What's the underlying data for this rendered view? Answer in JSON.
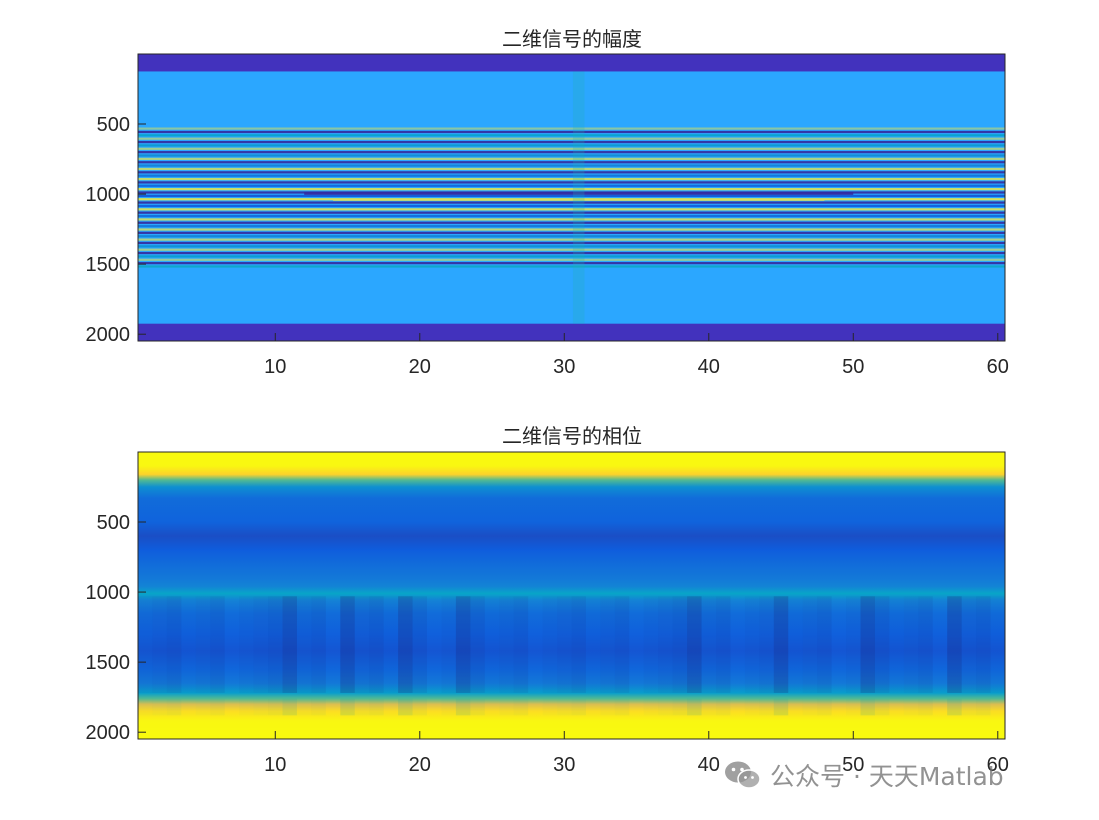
{
  "colors": {
    "parula": [
      "#352a87",
      "#0f5cdd",
      "#1481d6",
      "#06a4ca",
      "#2eb7a4",
      "#87bf77",
      "#d1bb59",
      "#fec832",
      "#f9fb0e"
    ],
    "amp_background": "#2ba7ff",
    "amp_edge": "#4232bd",
    "amp_stripe_dark": "#332b9e",
    "amp_stripe_yellow": "#d9e25a"
  },
  "chart_data": [
    {
      "type": "heatmap",
      "title": "二维信号的幅度",
      "xlim": [
        0.5,
        60.5
      ],
      "ylim": [
        2048.5,
        0.5
      ],
      "y_reversed": true,
      "x_ticks": [
        10,
        20,
        30,
        40,
        50,
        60
      ],
      "x_tick_labels": [
        "10",
        "20",
        "30",
        "40",
        "50",
        "60"
      ],
      "y_ticks": [
        500,
        1000,
        1500,
        2000
      ],
      "y_tick_labels": [
        "500",
        "1000",
        "1500",
        "2000"
      ],
      "colormap": "parula",
      "bands": [
        {
          "y_start": 0,
          "y_end": 125,
          "level": "low"
        },
        {
          "y_start": 125,
          "y_end": 525,
          "level": "mid"
        },
        {
          "y_start": 525,
          "y_end": 1510,
          "level": "oscillating"
        },
        {
          "y_start": 1510,
          "y_end": 1925,
          "level": "mid"
        },
        {
          "y_start": 1925,
          "y_end": 2048,
          "level": "low"
        }
      ],
      "center_peak_y": 1024,
      "center_column_x": 31
    },
    {
      "type": "heatmap",
      "title": "二维信号的相位",
      "xlim": [
        0.5,
        60.5
      ],
      "ylim": [
        2048.5,
        0.5
      ],
      "y_reversed": true,
      "x_ticks": [
        10,
        20,
        30,
        40,
        50,
        60
      ],
      "x_tick_labels": [
        "10",
        "20",
        "30",
        "40",
        "50",
        "60"
      ],
      "y_ticks": [
        500,
        1000,
        1500,
        2000
      ],
      "y_tick_labels": [
        "500",
        "1000",
        "1500",
        "2000"
      ],
      "colormap": "parula",
      "row_profile": [
        {
          "y": 0,
          "v": 1.0
        },
        {
          "y": 100,
          "v": 0.99
        },
        {
          "y": 160,
          "v": 0.9
        },
        {
          "y": 200,
          "v": 0.55
        },
        {
          "y": 250,
          "v": 0.3
        },
        {
          "y": 330,
          "v": 0.18
        },
        {
          "y": 500,
          "v": 0.15
        },
        {
          "y": 600,
          "v": 0.09
        },
        {
          "y": 700,
          "v": 0.13
        },
        {
          "y": 800,
          "v": 0.18
        },
        {
          "y": 900,
          "v": 0.22
        },
        {
          "y": 960,
          "v": 0.26
        },
        {
          "y": 1010,
          "v": 0.38
        },
        {
          "y": 1060,
          "v": 0.25
        },
        {
          "y": 1150,
          "v": 0.18
        },
        {
          "y": 1300,
          "v": 0.14
        },
        {
          "y": 1420,
          "v": 0.11
        },
        {
          "y": 1550,
          "v": 0.16
        },
        {
          "y": 1650,
          "v": 0.22
        },
        {
          "y": 1720,
          "v": 0.35
        },
        {
          "y": 1760,
          "v": 0.55
        },
        {
          "y": 1800,
          "v": 0.78
        },
        {
          "y": 1850,
          "v": 0.93
        },
        {
          "y": 1920,
          "v": 0.99
        },
        {
          "y": 2048,
          "v": 1.0
        }
      ],
      "dark_columns": [
        11,
        15,
        19,
        23,
        39,
        45,
        51,
        57
      ]
    }
  ],
  "watermark": {
    "text": "公众号 · 天天Matlab",
    "icon": "wechat-icon"
  }
}
